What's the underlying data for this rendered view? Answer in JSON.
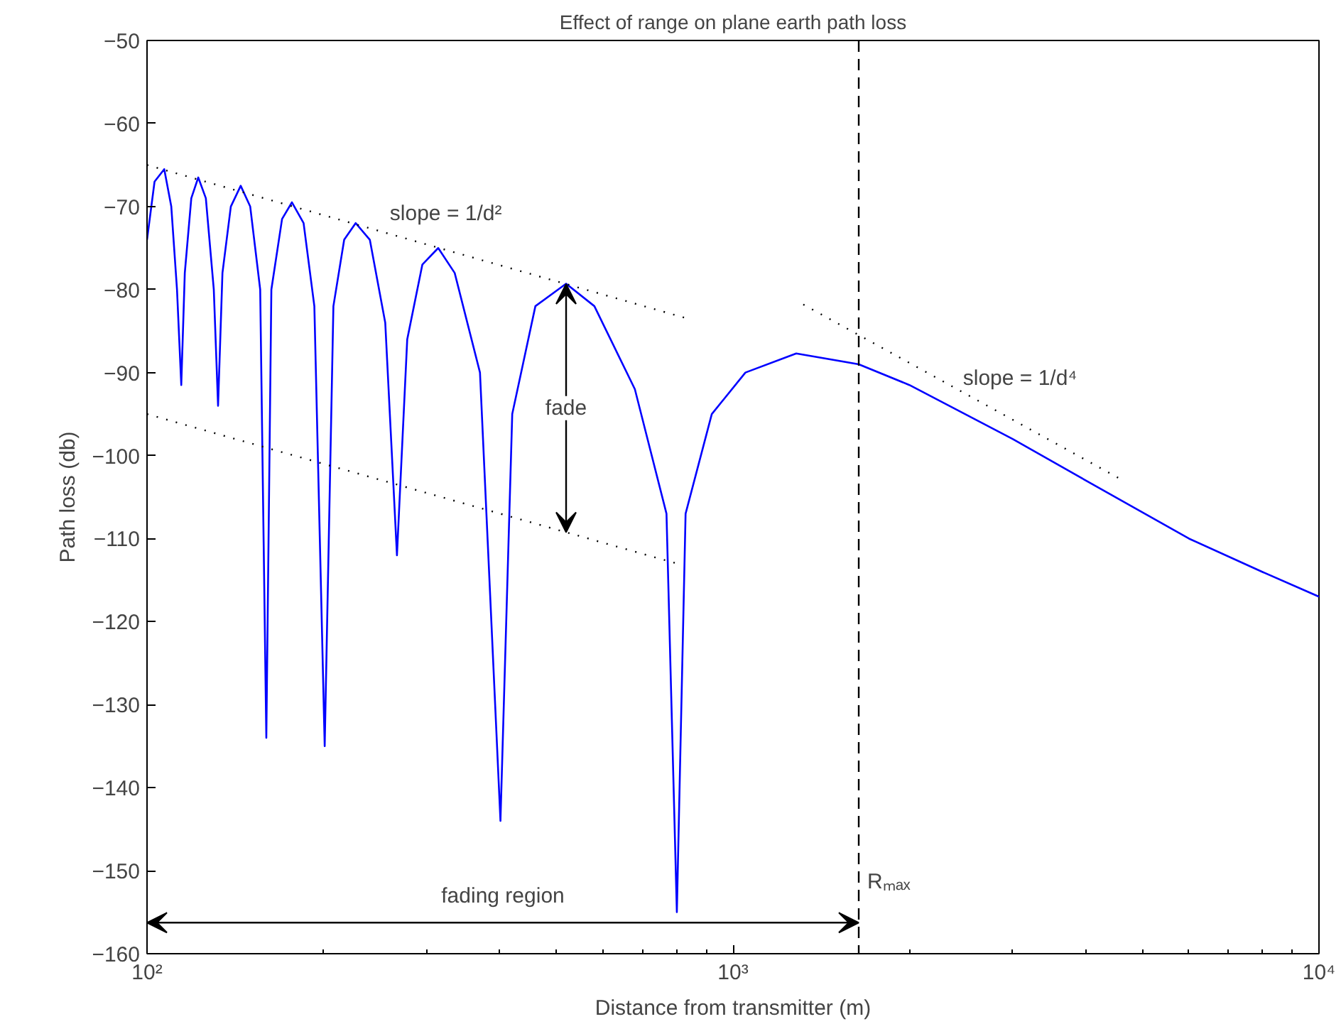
{
  "chart_data": {
    "type": "line",
    "title": "Effect of range on plane earth path loss",
    "xlabel": "Distance from transmitter (m)",
    "ylabel": "Path loss (db)",
    "log": "x",
    "grid": false,
    "marker": "none",
    "xlim": [
      100,
      10000
    ],
    "xticks": [
      {
        "value": 100,
        "label": "10²"
      },
      {
        "value": 1000,
        "label": "10³"
      },
      {
        "value": 10000,
        "label": "10⁴"
      }
    ],
    "ylim": [
      -160,
      -50
    ],
    "yticks": [
      -160,
      -150,
      -140,
      -130,
      -120,
      -110,
      -100,
      -90,
      -80,
      -70,
      -60,
      -50
    ],
    "series": [
      {
        "color": "#0000ff",
        "line_style": "solid",
        "x": [
          100,
          103,
          107,
          110,
          112.5,
          114.4,
          116,
          119,
          122.3,
          126,
          130,
          132.2,
          134.5,
          139,
          144.5,
          150,
          156,
          159.8,
          163,
          170,
          176.7,
          185,
          193,
          201,
          208,
          217,
          227,
          240,
          255,
          267,
          278,
          295,
          314,
          335,
          370,
          401,
          420,
          460,
          519,
          580,
          680,
          770,
          802,
          830,
          920,
          1050,
          1282,
          1639,
          2000,
          3000,
          4000,
          6000,
          8000,
          10000
        ],
        "values": [
          -74,
          -67,
          -65.5,
          -70,
          -80,
          -91.5,
          -78,
          -69,
          -66.5,
          -69,
          -80,
          -94,
          -78,
          -70,
          -67.5,
          -70,
          -80,
          -134,
          -80,
          -71.5,
          -69.5,
          -72,
          -82,
          -135,
          -82,
          -74,
          -72,
          -74,
          -84,
          -112,
          -86,
          -77,
          -75,
          -78,
          -90,
          -144,
          -95,
          -82,
          -79.3,
          -82,
          -92,
          -107,
          -155,
          -107,
          -95,
          -90,
          -87.7,
          -89,
          -91.5,
          -98,
          -103,
          -110,
          -114,
          -117
        ]
      },
      {
        "color": "#000000",
        "line_style": "dotted",
        "x": [
          100,
          837
        ],
        "values": [
          -65,
          -83.5
        ]
      },
      {
        "color": "#000000",
        "line_style": "dotted",
        "x": [
          100,
          802
        ],
        "values": [
          -95,
          -113
        ]
      },
      {
        "color": "#000000",
        "line_style": "dotted",
        "x": [
          1318,
          4630
        ],
        "values": [
          -81.8,
          -103
        ]
      }
    ],
    "ref_lines": [
      {
        "axis": "x",
        "value": 1639,
        "label": "Rₘₐₓ",
        "color": "#000000",
        "line_style": "dashed"
      }
    ],
    "annotations": [
      "slope = 1/d²",
      "fade",
      "fading region",
      "slope = 1/d⁴"
    ]
  }
}
